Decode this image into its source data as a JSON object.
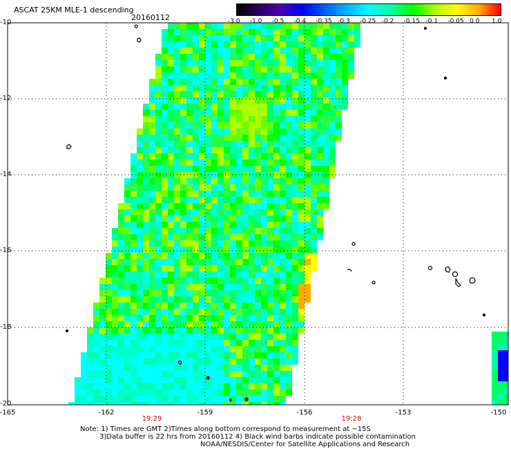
{
  "header": {
    "title": "ASCAT 25KM MLE-1 descending",
    "date": "20160112"
  },
  "colorbar": {
    "labels": [
      "-3.0",
      "-1.0",
      "-0.5",
      "-0.4",
      "-0.35",
      "-0.3",
      "-0.25",
      "-0.2",
      "-0.15",
      "-0.1",
      "-0.05",
      "0.0",
      "1.0"
    ],
    "colors": [
      "#000000",
      "#2a0060",
      "#4b00b4",
      "#0000ff",
      "#0060ff",
      "#00b4ff",
      "#00ffff",
      "#00ffaa",
      "#00ff00",
      "#aaff00",
      "#ffff00",
      "#ffaa00",
      "#ff0000"
    ]
  },
  "axes": {
    "y_labels": [
      "-10",
      "-12",
      "-14",
      "-16",
      "-18",
      "-20"
    ],
    "x_labels": [
      "-165",
      "-162",
      "-159",
      "-156",
      "-153",
      "-150"
    ]
  },
  "times": [
    "19:29",
    "19:28"
  ],
  "notes": {
    "line1": "Note: 1) Times are GMT 2)Times along bottom correspond to measurement at ~15S",
    "line2": "3)Data buffer is 22 hrs from 20160112 4) Black wind barbs indicate possible contamination",
    "line3": "NOAA/NESDIS/Center for Satellite Applications and Research"
  }
}
